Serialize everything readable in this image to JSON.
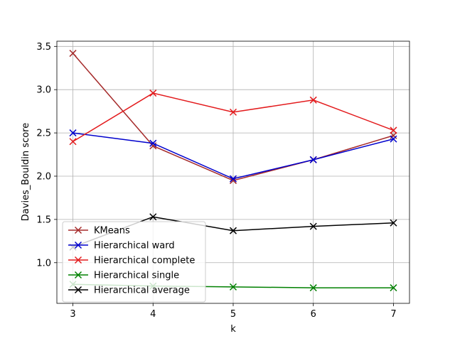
{
  "chart_data": {
    "type": "line",
    "xlabel": "k",
    "ylabel": "Davies_Bouldin score",
    "x": [
      3,
      4,
      5,
      6,
      7
    ],
    "xlim": [
      2.8,
      7.2
    ],
    "ylim": [
      0.53,
      3.56
    ],
    "xticks": [
      3,
      4,
      5,
      6,
      7
    ],
    "yticks": [
      1.0,
      1.5,
      2.0,
      2.5,
      3.0,
      3.5
    ],
    "grid": true,
    "legend_position": "lower-left",
    "marker": "x",
    "series": [
      {
        "name": "KMeans",
        "color": "#a52a2a",
        "values": [
          3.42,
          2.35,
          1.95,
          2.19,
          2.47
        ]
      },
      {
        "name": "Hierarchical ward",
        "color": "#0000cd",
        "values": [
          2.5,
          2.38,
          1.97,
          2.19,
          2.43
        ]
      },
      {
        "name": "Hierarchical complete",
        "color": "#e31a1c",
        "values": [
          2.4,
          2.96,
          2.74,
          2.88,
          2.53
        ]
      },
      {
        "name": "Hierarchical single",
        "color": "#008000",
        "values": [
          0.75,
          0.73,
          0.72,
          0.71,
          0.71
        ]
      },
      {
        "name": "Hierarchical average",
        "color": "#000000",
        "values": [
          1.18,
          1.53,
          1.37,
          1.42,
          1.46
        ]
      }
    ]
  }
}
